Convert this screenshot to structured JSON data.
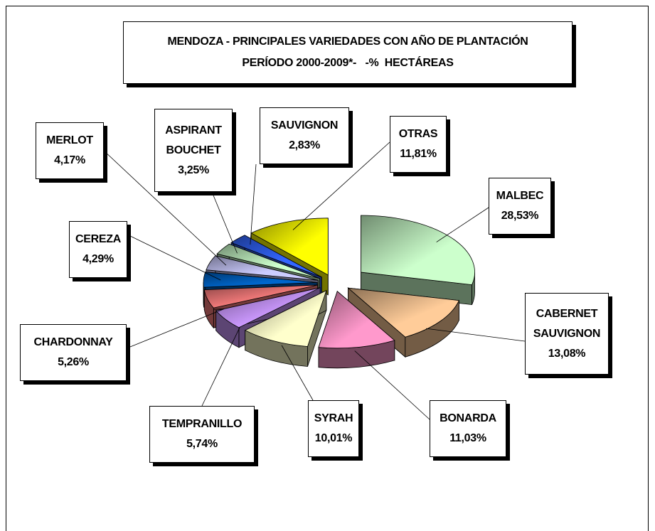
{
  "chart_data": {
    "type": "pie3d",
    "title": "MENDOZA - PRINCIPALES VARIEDADES CON AÑO DE PLANTACIÓN",
    "subtitle": "PERÍODO 2000-2009*-   -%  HECTÁREAS",
    "categories": [
      "MALBEC",
      "CABERNET SAUVIGNON",
      "BONARDA",
      "SYRAH",
      "TEMPRANILLO",
      "CHARDONNAY",
      "CEREZA",
      "MERLOT",
      "ASPIRANT BOUCHET",
      "SAUVIGNON",
      "OTRAS"
    ],
    "values": [
      28.53,
      13.08,
      11.03,
      10.01,
      5.74,
      5.26,
      4.29,
      4.17,
      3.25,
      2.83,
      11.81
    ],
    "value_labels": [
      "28,53%",
      "13,08%",
      "11,03%",
      "10,01%",
      "5,74%",
      "5,26%",
      "4,29%",
      "4,17%",
      "3,25%",
      "2,83%",
      "11,81%"
    ],
    "colors": [
      "#ccffcc",
      "#ffcc99",
      "#ff99cc",
      "#ffffcc",
      "#cc99ff",
      "#ff8080",
      "#0066cc",
      "#ccccff",
      "#ccffcc",
      "#3366ff",
      "#ffff00"
    ]
  }
}
